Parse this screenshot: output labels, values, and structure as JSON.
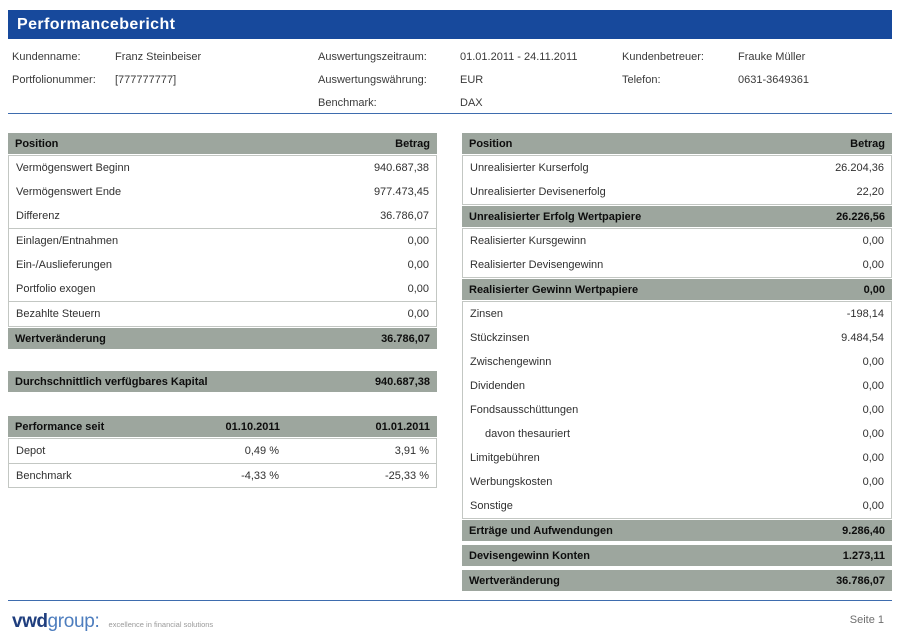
{
  "title": "Performancebericht",
  "page_label": "Seite 1",
  "meta": {
    "col1": [
      {
        "label": "Kundenname:",
        "value": "Franz Steinbeiser"
      },
      {
        "label": "Portfolionummer:",
        "value": "[777777777]"
      }
    ],
    "col2": [
      {
        "label": "Auswertungszeitraum:",
        "value": "01.01.2011 - 24.11.2011"
      },
      {
        "label": "Auswertungswährung:",
        "value": "EUR"
      },
      {
        "label": "Benchmark:",
        "value": "DAX"
      }
    ],
    "col3": [
      {
        "label": "Kundenbetreuer:",
        "value": "Frauke Müller"
      },
      {
        "label": "Telefon:",
        "value": "0631-3649361"
      }
    ]
  },
  "left_table": {
    "header": {
      "position": "Position",
      "amount": "Betrag"
    },
    "groups": [
      {
        "rows": [
          {
            "label": "Vermögenswert Beginn",
            "value": "940.687,38"
          },
          {
            "label": "Vermögenswert Ende",
            "value": "977.473,45"
          },
          {
            "label": "Differenz",
            "value": "36.786,07"
          }
        ]
      },
      {
        "rows": [
          {
            "label": "Einlagen/Entnahmen",
            "value": "0,00"
          },
          {
            "label": "Ein-/Auslieferungen",
            "value": "0,00"
          },
          {
            "label": "Portfolio exogen",
            "value": "0,00"
          }
        ]
      },
      {
        "rows": [
          {
            "label": "Bezahlte Steuern",
            "value": "0,00"
          }
        ]
      }
    ],
    "total": {
      "label": "Wertveränderung",
      "value": "36.786,07"
    }
  },
  "avg_capital": {
    "label": "Durchschnittlich verfügbares Kapital",
    "value": "940.687,38"
  },
  "performance_table": {
    "header": {
      "label": "Performance seit",
      "col1": "01.10.2011",
      "col2": "01.01.2011"
    },
    "rows": [
      {
        "label": "Depot",
        "col1": "0,49 %",
        "col2": "3,91 %"
      },
      {
        "label": "Benchmark",
        "col1": "-4,33 %",
        "col2": "-25,33 %"
      }
    ]
  },
  "right_table": {
    "header": {
      "position": "Position",
      "amount": "Betrag"
    },
    "sections": [
      {
        "rows": [
          {
            "label": "Unrealisierter Kurserfolg",
            "value": "26.204,36"
          },
          {
            "label": "Unrealisierter Devisenerfolg",
            "value": "22,20"
          }
        ],
        "total": {
          "label": "Unrealisierter Erfolg Wertpapiere",
          "value": "26.226,56"
        }
      },
      {
        "rows": [
          {
            "label": "Realisierter Kursgewinn",
            "value": "0,00"
          },
          {
            "label": "Realisierter Devisengewinn",
            "value": "0,00"
          }
        ],
        "total": {
          "label": "Realisierter Gewinn Wertpapiere",
          "value": "0,00"
        }
      },
      {
        "rows": [
          {
            "label": "Zinsen",
            "value": "-198,14"
          },
          {
            "label": "Stückzinsen",
            "value": "9.484,54"
          },
          {
            "label": "Zwischengewinn",
            "value": "0,00"
          },
          {
            "label": "Dividenden",
            "value": "0,00"
          },
          {
            "label": "Fondsausschüttungen",
            "value": "0,00"
          },
          {
            "label": "davon thesauriert",
            "value": "0,00"
          },
          {
            "label": "Limitgebühren",
            "value": "0,00"
          },
          {
            "label": "Werbungskosten",
            "value": "0,00"
          },
          {
            "label": "Sonstige",
            "value": "0,00"
          }
        ],
        "total": {
          "label": "Erträge und Aufwendungen",
          "value": "9.286,40"
        }
      }
    ],
    "standalone_totals": [
      {
        "label": "Devisengewinn Konten",
        "value": "1.273,11"
      },
      {
        "label": "Wertveränderung",
        "value": "36.786,07"
      }
    ]
  },
  "footer": {
    "logo": {
      "vwd": "vwd",
      "group": "group:",
      "tagline": "excellence in financial solutions"
    }
  },
  "colors": {
    "title_bar_blue": "#17499C",
    "section_band_gray": "#9DA69E",
    "table_border_gray": "#C3C7C3",
    "rule_blue": "#3E6CAE",
    "logo_dark_blue": "#1F3E7E",
    "logo_light_blue": "#4D7DBE"
  }
}
